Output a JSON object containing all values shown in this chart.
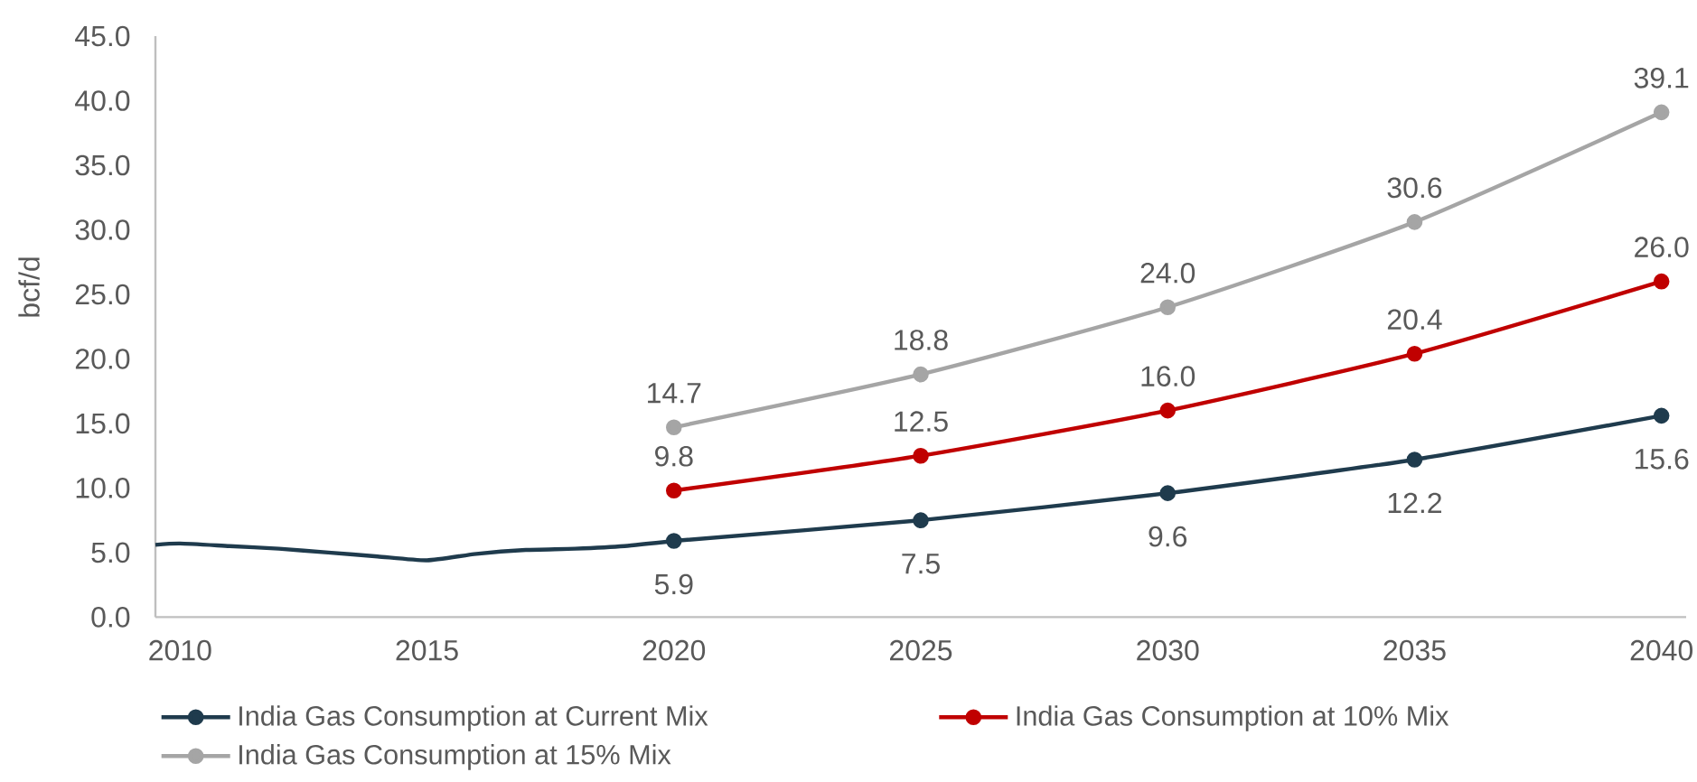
{
  "chart_data": {
    "type": "line",
    "ylabel": "bcf/d",
    "xlim": [
      2009.5,
      2040.5
    ],
    "xticks": [
      2010,
      2015,
      2020,
      2025,
      2030,
      2035,
      2040
    ],
    "ylim": [
      0,
      45
    ],
    "yticks": [
      {
        "value": 0,
        "label": "0.0"
      },
      {
        "value": 5,
        "label": "5.0"
      },
      {
        "value": 10,
        "label": "10.0"
      },
      {
        "value": 15,
        "label": "15.0"
      },
      {
        "value": 20,
        "label": "20.0"
      },
      {
        "value": 25,
        "label": "25.0"
      },
      {
        "value": 30,
        "label": "30.0"
      },
      {
        "value": 35,
        "label": "35.0"
      },
      {
        "value": 40,
        "label": "40.0"
      },
      {
        "value": 45,
        "label": "45.0"
      }
    ],
    "marker": "circle",
    "legend": "bottom",
    "series": [
      {
        "color": "#1f3b4d",
        "marker": "none",
        "x": [
          2009.5,
          2010,
          2011,
          2012,
          2013,
          2014,
          2015,
          2016,
          2017,
          2018,
          2019,
          2020
        ],
        "values": [
          5.6,
          5.7,
          5.5,
          5.3,
          5.0,
          4.7,
          4.4,
          4.9,
          5.2,
          5.3,
          5.5,
          5.9
        ]
      },
      {
        "name": "India Gas Consumption at Current Mix",
        "color": "#1f3b4d",
        "x": [
          2020,
          2025,
          2030,
          2035,
          2040
        ],
        "values": [
          5.9,
          7.5,
          9.6,
          12.2,
          15.6
        ],
        "value_labels": [
          "5.9",
          "7.5",
          "9.6",
          "12.2",
          "15.6"
        ]
      },
      {
        "name": "India Gas Consumption at 10% Mix",
        "color": "#c00000",
        "x": [
          2020,
          2025,
          2030,
          2035,
          2040
        ],
        "values": [
          9.8,
          12.5,
          16.0,
          20.4,
          26.0
        ],
        "value_labels": [
          "9.8",
          "12.5",
          "16.0",
          "20.4",
          "26.0"
        ]
      },
      {
        "name": "India Gas Consumption at 15% Mix",
        "color": "#a5a5a5",
        "x": [
          2020,
          2025,
          2030,
          2035,
          2040
        ],
        "values": [
          14.7,
          18.8,
          24.0,
          30.6,
          39.1
        ],
        "value_labels": [
          "14.7",
          "18.8",
          "24.0",
          "30.6",
          "39.1"
        ]
      }
    ]
  }
}
